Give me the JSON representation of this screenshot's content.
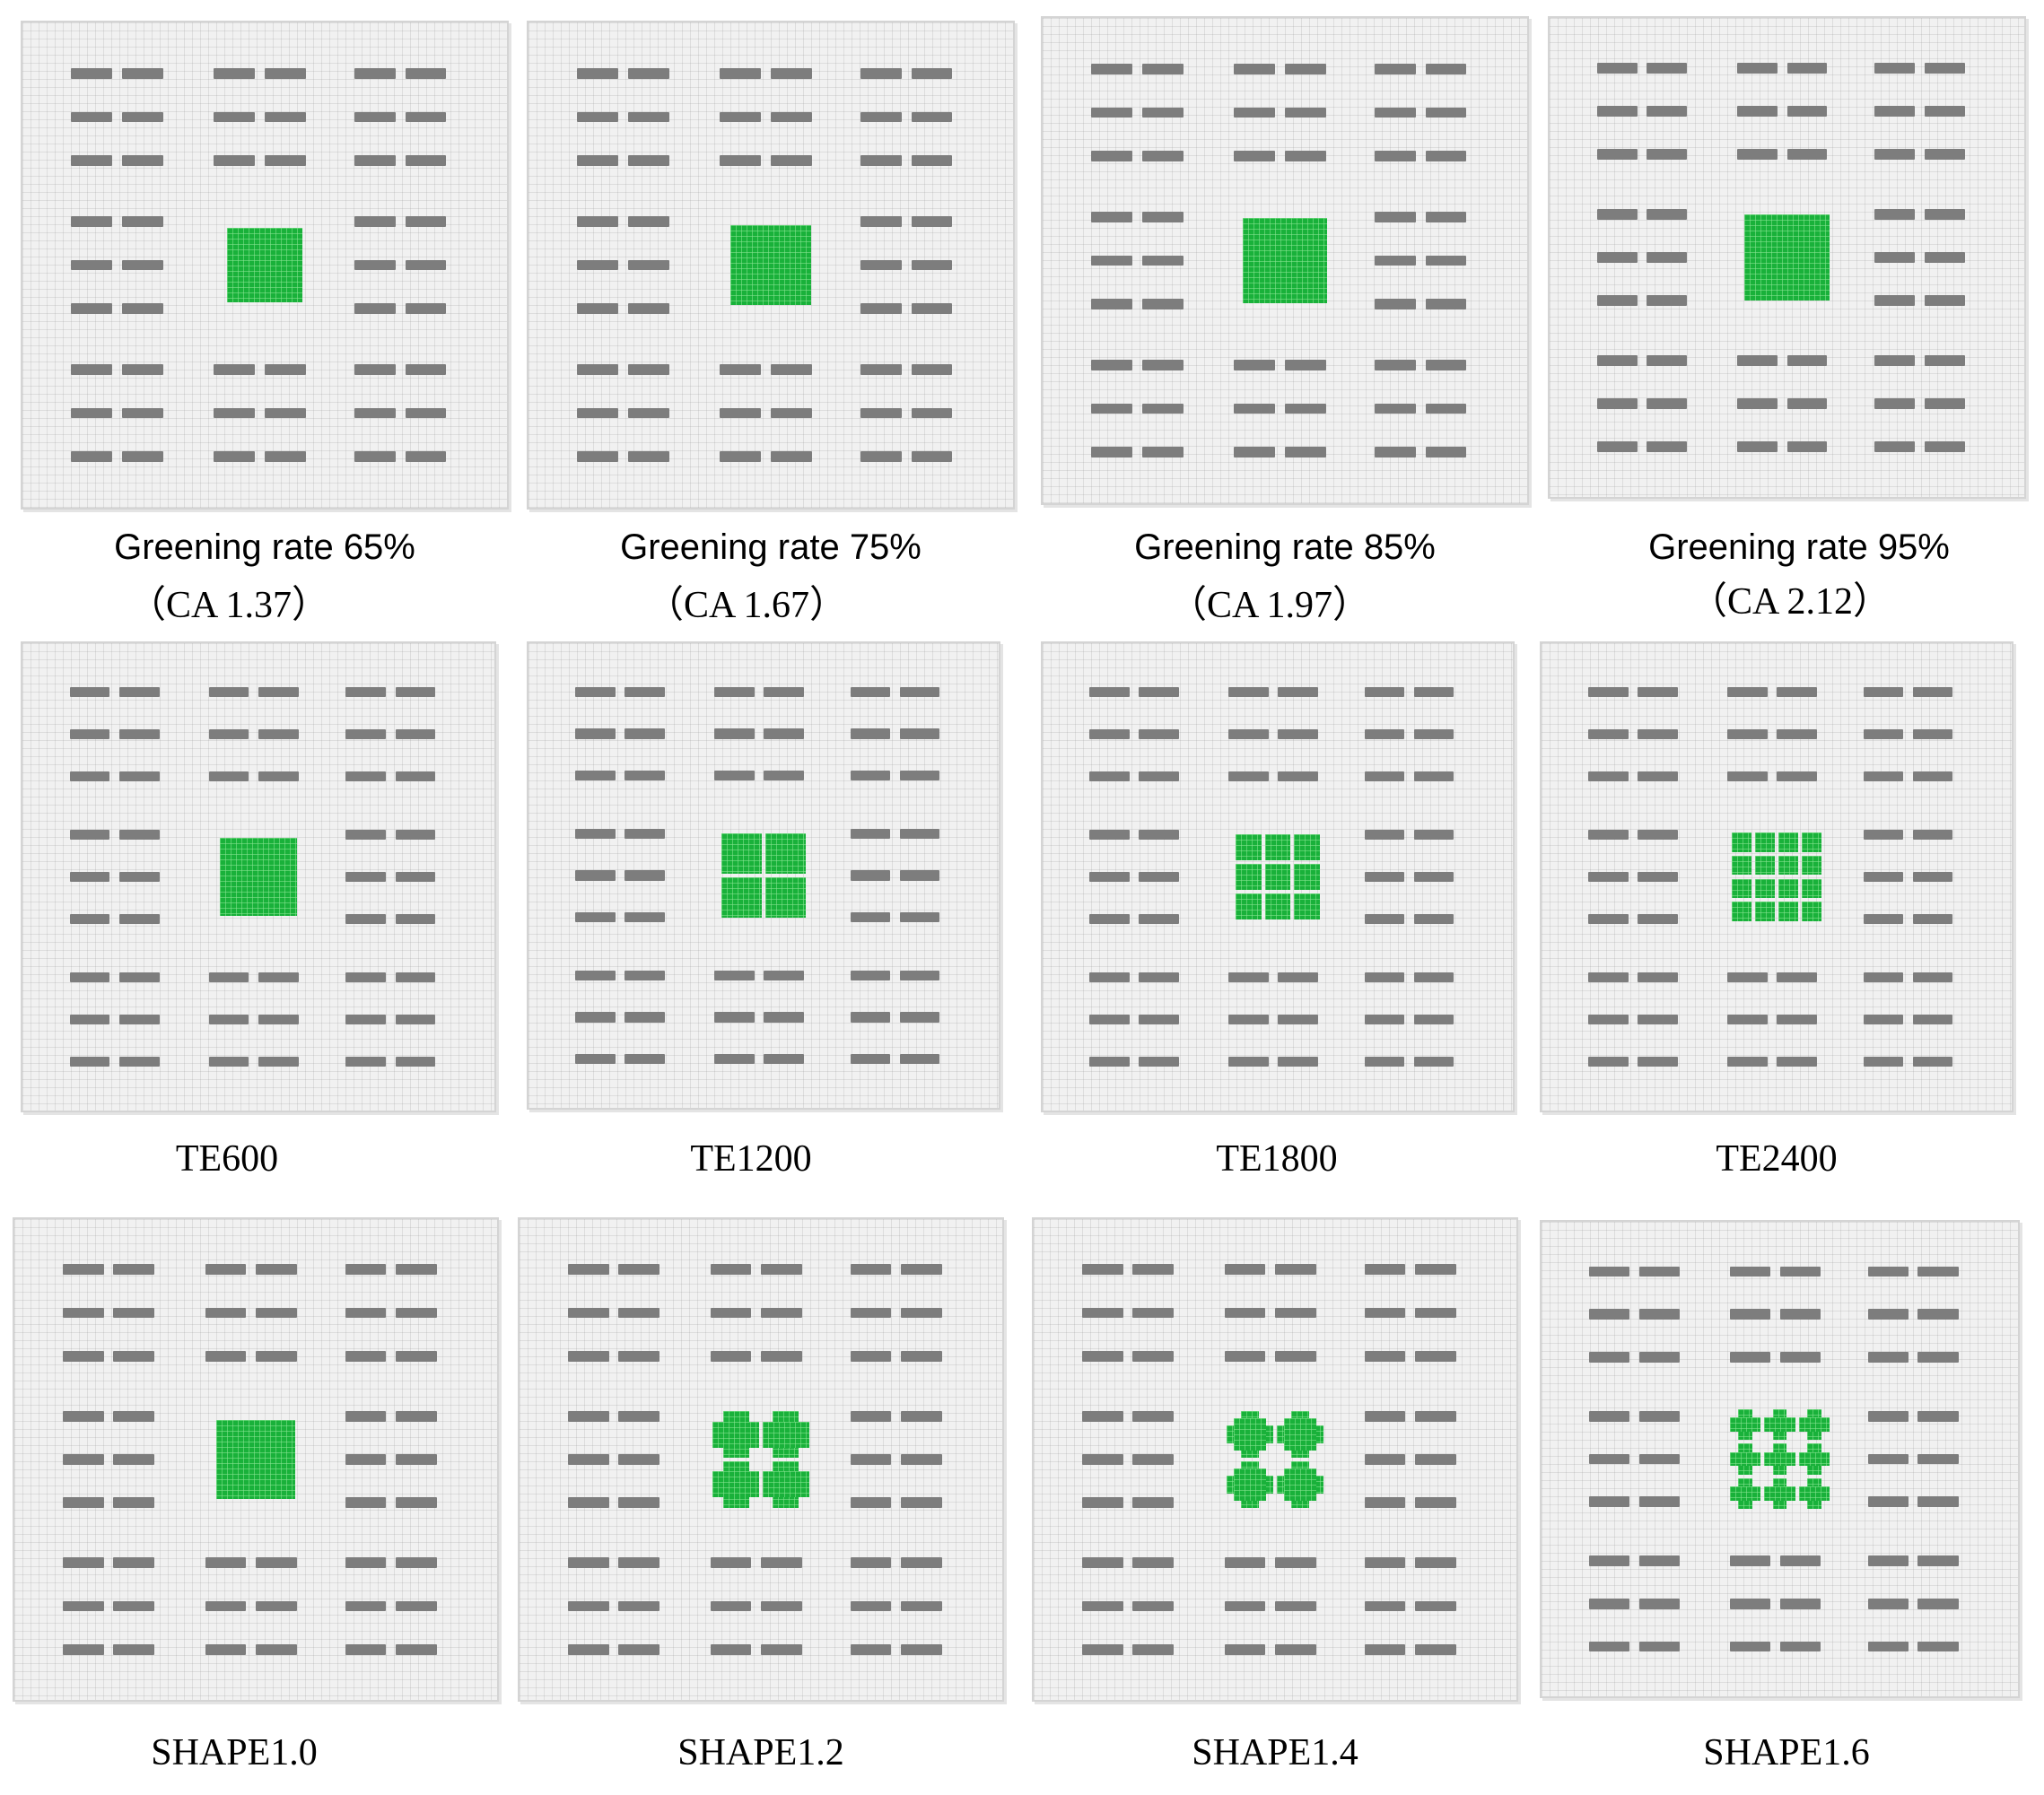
{
  "panels": [
    {
      "caption": "Greening rate 65%",
      "caption2": "（CA 1.37）",
      "pattern": "block"
    },
    {
      "caption": "Greening rate 75%",
      "caption2": "（CA 1.67）",
      "pattern": "block"
    },
    {
      "caption": "Greening rate 85%",
      "caption2": "（CA 1.97）",
      "pattern": "block"
    },
    {
      "caption": "Greening rate 95%",
      "caption2": "（CA 2.12）",
      "pattern": "block"
    },
    {
      "caption": "TE600",
      "pattern": "block"
    },
    {
      "caption": "TE1200",
      "pattern": "grid-2x2"
    },
    {
      "caption": "TE1800",
      "pattern": "grid-3x3"
    },
    {
      "caption": "TE2400",
      "pattern": "grid-4x4"
    },
    {
      "caption": "SHAPE1.0",
      "pattern": "block"
    },
    {
      "caption": "SHAPE1.2",
      "pattern": "shape-2x2"
    },
    {
      "caption": "SHAPE1.4",
      "pattern": "shape-2x2-deep"
    },
    {
      "caption": "SHAPE1.6",
      "pattern": "shape-3x3"
    }
  ],
  "colors": {
    "building": "#7d7d7d",
    "green_space": "#19b13a",
    "background": "#f1f1f1"
  }
}
